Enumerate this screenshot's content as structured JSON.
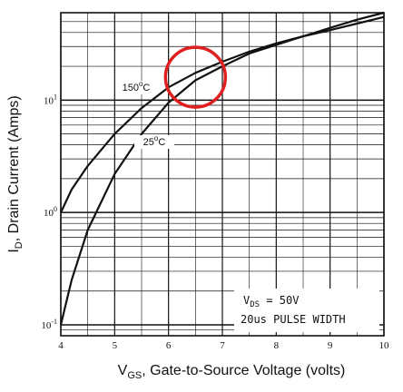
{
  "chart_data": {
    "type": "line",
    "ylabel": "I_D, Drain Current (Amps)",
    "xlabel": "V_GS, Gate-to-Source Voltage (volts)",
    "x_scale": "linear",
    "y_scale": "log",
    "xlim": [
      4,
      10
    ],
    "ylim": [
      0.08,
      60
    ],
    "x_ticks": [
      4,
      5,
      6,
      7,
      8,
      9,
      10
    ],
    "y_ticks": [
      {
        "value": 0.1,
        "base": "10",
        "exp": "-1"
      },
      {
        "value": 1,
        "base": "10",
        "exp": "0"
      },
      {
        "value": 10,
        "base": "10",
        "exp": "1"
      }
    ],
    "grid": true,
    "series": [
      {
        "name": "150°C",
        "label_base": "150",
        "label_sup": "o",
        "label_unit": "C",
        "x": [
          4.0,
          4.2,
          4.5,
          5.0,
          5.5,
          6.0,
          6.5,
          7.0,
          7.5,
          8.0,
          8.5,
          9.0,
          9.5,
          10.0
        ],
        "y": [
          1.0,
          1.6,
          2.6,
          5.0,
          8.5,
          13.0,
          17.5,
          22.0,
          27.0,
          32.0,
          37.0,
          42.0,
          48.0,
          55.0
        ]
      },
      {
        "name": "25°C",
        "label_base": "25",
        "label_sup": "o",
        "label_unit": "C",
        "x": [
          4.0,
          4.2,
          4.5,
          5.0,
          5.5,
          6.0,
          6.5,
          7.0,
          7.5,
          8.0,
          8.5,
          9.0,
          9.5,
          10.0
        ],
        "y": [
          0.1,
          0.25,
          0.7,
          2.2,
          5.0,
          9.5,
          15.0,
          20.0,
          26.0,
          31.0,
          37.0,
          44.0,
          52.0,
          60.0
        ]
      }
    ],
    "annotations": [
      {
        "base": "V",
        "sub": "DS",
        "rest": " = 50V"
      },
      {
        "text": "20us PULSE WIDTH"
      }
    ],
    "highlight": {
      "x": 6.5,
      "y": 16,
      "color": "#e02020"
    }
  }
}
